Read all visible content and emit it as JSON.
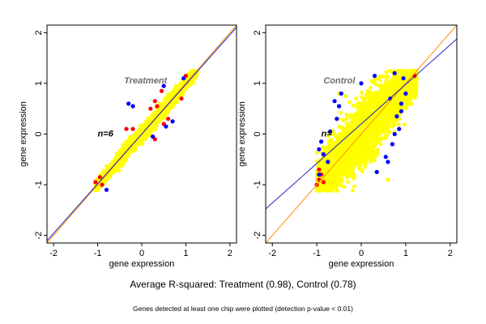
{
  "caption": "Average R-squared: Treatment (0.98), Control (0.78)",
  "subcaption": "Genes detected at least one chip were plotted (detection p-value < 0.01)",
  "colors": {
    "yellow": "#ffff00",
    "red": "#ff0000",
    "blue": "#0000ff",
    "identity_line": "#ff8c00",
    "fit_line": "#2020c0",
    "panel_label": "#6e6e6e"
  },
  "chart_data": [
    {
      "type": "scatter",
      "title": "Treatment",
      "annotation": "n=6",
      "xlabel": "gene expression",
      "ylabel": "gene expression",
      "xlim": [
        -2.15,
        2.15
      ],
      "ylim": [
        -2.15,
        2.15
      ],
      "xticks": [
        "-2",
        "-1",
        "0",
        "1",
        "2"
      ],
      "yticks": [
        "-2",
        "-1",
        "0",
        "1",
        "2"
      ],
      "cloud": {
        "x_range": [
          -1.05,
          1.25
        ],
        "core_halfwidth": 0.1,
        "points_in_main_band": 0.14,
        "n_points": 3200
      },
      "series": [
        {
          "color": "yellow",
          "points": [
            [
              -1.0,
              -1.0
            ],
            [
              -0.6,
              -0.6
            ],
            [
              -0.2,
              -0.2
            ],
            [
              0.2,
              0.2
            ],
            [
              0.6,
              0.6
            ],
            [
              1.0,
              1.0
            ],
            [
              1.2,
              1.2
            ]
          ]
        },
        {
          "color": "red",
          "points": [
            [
              -1.05,
              -0.95
            ],
            [
              -0.95,
              -0.85
            ],
            [
              -0.9,
              -1.0
            ],
            [
              -0.35,
              0.1
            ],
            [
              -0.2,
              0.1
            ],
            [
              0.2,
              0.5
            ],
            [
              0.3,
              0.65
            ],
            [
              0.45,
              0.85
            ],
            [
              0.3,
              -0.1
            ],
            [
              0.5,
              0.2
            ],
            [
              0.6,
              0.3
            ],
            [
              0.9,
              0.7
            ],
            [
              1.0,
              1.15
            ],
            [
              0.35,
              0.55
            ]
          ]
        },
        {
          "color": "blue",
          "points": [
            [
              -0.3,
              0.6
            ],
            [
              -0.2,
              0.55
            ],
            [
              0.5,
              0.95
            ],
            [
              0.55,
              0.15
            ],
            [
              0.7,
              0.25
            ],
            [
              0.95,
              1.1
            ],
            [
              -0.8,
              -1.1
            ],
            [
              0.25,
              -0.05
            ]
          ]
        }
      ],
      "lines": [
        {
          "name": "identity",
          "slope": 1,
          "intercept": 0
        },
        {
          "name": "fit",
          "slope": 0.98,
          "intercept": 0
        }
      ],
      "grid": false
    },
    {
      "type": "scatter",
      "title": "Control",
      "annotation": "n=",
      "xlabel": "gene expression",
      "ylabel": "gene expression",
      "xlim": [
        -2.15,
        2.15
      ],
      "ylim": [
        -2.15,
        2.15
      ],
      "xticks": [
        "-2",
        "-1",
        "0",
        "1",
        "2"
      ],
      "yticks": [
        "-2",
        "-1",
        "0",
        "1",
        "2"
      ],
      "cloud": {
        "x_range": [
          -1.0,
          1.25
        ],
        "core_halfwidth": 0.55,
        "n_points": 4200
      },
      "series": [
        {
          "color": "yellow",
          "points": [
            [
              -0.9,
              -0.9
            ],
            [
              -0.5,
              -0.5
            ],
            [
              0.0,
              0.0
            ],
            [
              0.5,
              0.5
            ],
            [
              1.0,
              1.0
            ],
            [
              -0.5,
              0.8
            ],
            [
              -0.35,
              0.75
            ],
            [
              0.6,
              -0.9
            ]
          ]
        },
        {
          "color": "red",
          "points": [
            [
              -1.0,
              -1.0
            ],
            [
              -0.95,
              -0.9
            ],
            [
              -0.9,
              -0.8
            ],
            [
              -0.95,
              -0.7
            ],
            [
              -0.85,
              -0.95
            ],
            [
              1.2,
              1.15
            ]
          ]
        },
        {
          "color": "blue",
          "points": [
            [
              -0.95,
              -0.3
            ],
            [
              -0.9,
              -0.15
            ],
            [
              -0.85,
              -0.4
            ],
            [
              -0.7,
              0.05
            ],
            [
              -0.55,
              0.3
            ],
            [
              -0.5,
              0.55
            ],
            [
              -0.6,
              0.65
            ],
            [
              -0.45,
              0.8
            ],
            [
              0.0,
              1.0
            ],
            [
              0.3,
              1.15
            ],
            [
              0.75,
              1.2
            ],
            [
              0.95,
              1.1
            ],
            [
              1.0,
              0.8
            ],
            [
              0.9,
              0.6
            ],
            [
              0.8,
              0.35
            ],
            [
              0.85,
              0.1
            ],
            [
              0.75,
              0.0
            ],
            [
              0.55,
              -0.45
            ],
            [
              0.7,
              -0.2
            ],
            [
              0.6,
              -0.55
            ],
            [
              0.35,
              -0.75
            ],
            [
              0.65,
              0.7
            ],
            [
              0.9,
              0.45
            ],
            [
              -0.75,
              -0.55
            ],
            [
              -0.95,
              -0.8
            ]
          ]
        }
      ],
      "lines": [
        {
          "name": "identity",
          "slope": 1,
          "intercept": 0
        },
        {
          "name": "fit",
          "slope": 0.78,
          "intercept": 0.2
        }
      ],
      "grid": false
    }
  ]
}
